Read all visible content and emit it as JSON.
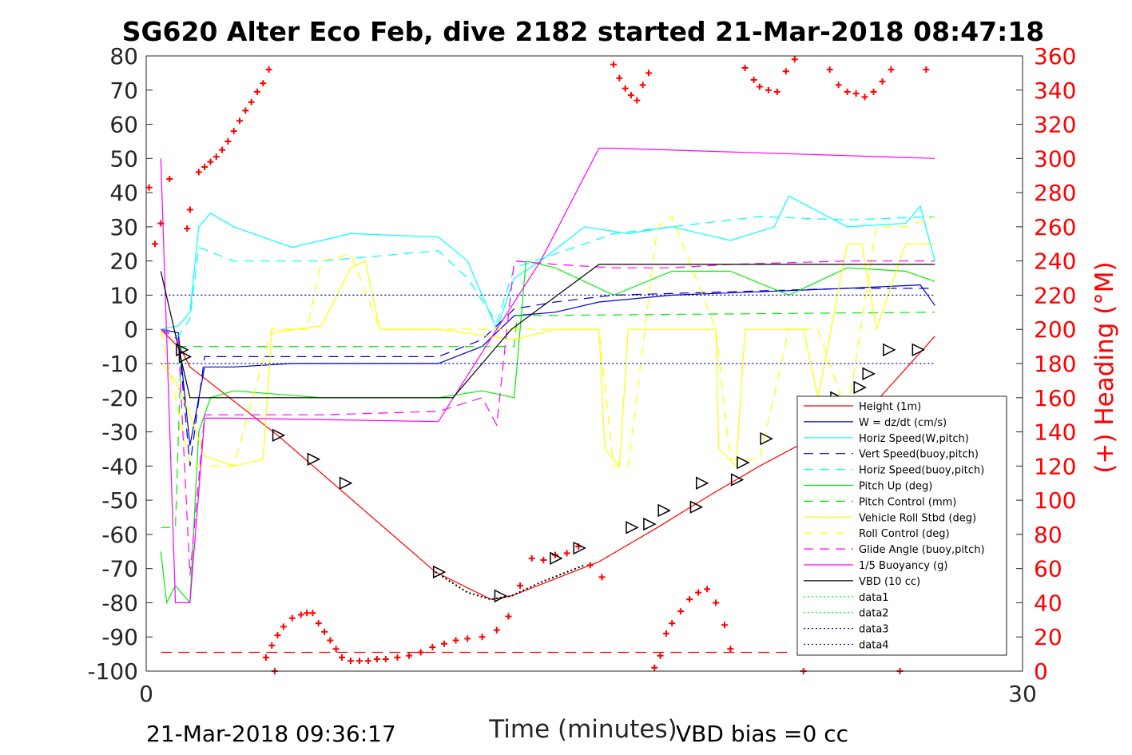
{
  "title": "SG620 Alter Eco Feb, dive 2182 started 21-Mar-2018 08:47:18",
  "footer_left": "21-Mar-2018 09:36:17",
  "footer_right": "VBD bias =0 cc",
  "chart_data": {
    "type": "line",
    "xlabel": "Time (minutes)",
    "ylabel": "",
    "y2label": "(+) Heading (°M)",
    "xlim": [
      0,
      30
    ],
    "ylim": [
      -100,
      80
    ],
    "y2lim": [
      0,
      360
    ],
    "xticks": [
      "0",
      "30"
    ],
    "yticks": [
      "80",
      "70",
      "60",
      "50",
      "40",
      "30",
      "20",
      "10",
      "0",
      "-10",
      "-20",
      "-30",
      "-40",
      "-50",
      "-60",
      "-70",
      "-80",
      "-90",
      "-100"
    ],
    "y2ticks": [
      "360",
      "340",
      "320",
      "300",
      "280",
      "260",
      "240",
      "220",
      "200",
      "180",
      "160",
      "140",
      "120",
      "100",
      "80",
      "60",
      "40",
      "20",
      "0"
    ],
    "legend_position": "bottom-right",
    "series": [
      {
        "name": "Height (1m)",
        "color": "#ff0000",
        "style": "solid",
        "x": [
          0.5,
          1.2,
          1.5,
          4.5,
          9.9,
          11.8,
          12.5,
          15.5,
          17.5,
          19.4,
          21.0,
          23.2,
          25.0,
          27.0
        ],
        "y": [
          0,
          -6,
          -11,
          -31,
          -71,
          -79,
          -78,
          -68,
          -58,
          -48,
          -40,
          -30,
          -21,
          -2
        ]
      },
      {
        "name": "W = dz/dt (cm/s)",
        "color": "#0000cc",
        "style": "solid",
        "x": [
          0.5,
          1.1,
          1.5,
          2.0,
          3.0,
          5.0,
          8.0,
          10.0,
          11.5,
          12.6,
          14.0,
          15.5,
          18.0,
          21.0,
          24.0,
          26.5,
          27.0
        ],
        "y": [
          0,
          -1,
          -34,
          -11,
          -11,
          -10,
          -10,
          -10,
          -5,
          4,
          5,
          8,
          10,
          11,
          12,
          13,
          7
        ]
      },
      {
        "name": "Horiz Speed(W,pitch)",
        "color": "#00ffff",
        "style": "solid",
        "x": [
          0.5,
          1.1,
          1.5,
          1.8,
          2.2,
          3.0,
          5.0,
          7.0,
          10.0,
          11.0,
          12.0,
          12.6,
          13.5,
          15.0,
          16.5,
          18.0,
          20.0,
          21.5,
          22.0,
          24.0,
          26.0,
          26.5,
          27.0
        ],
        "y": [
          0,
          1,
          5,
          30,
          34,
          30,
          24,
          28,
          27,
          20,
          0,
          15,
          20,
          30,
          28,
          30,
          26,
          30,
          39,
          30,
          31,
          36,
          20
        ]
      },
      {
        "name": "Vert Speed(buoy,pitch)",
        "color": "#0000cc",
        "style": "dash",
        "x": [
          0.5,
          1.1,
          1.5,
          2.0,
          3.0,
          8.0,
          10.0,
          11.5,
          12.6,
          14.0,
          16.0,
          20.0,
          24.0,
          27.0
        ],
        "y": [
          0,
          -2,
          -40,
          -8,
          -8,
          -8,
          -8,
          -3,
          6,
          8,
          10,
          11,
          12,
          12
        ]
      },
      {
        "name": "Horiz Speed(buoy,pitch)",
        "color": "#00ffff",
        "style": "dash",
        "x": [
          0.5,
          1.1,
          1.5,
          1.8,
          3.0,
          6.0,
          10.0,
          11.0,
          12.0,
          12.6,
          14.0,
          16.0,
          18.0,
          21.0,
          24.0,
          27.0
        ],
        "y": [
          0,
          -2,
          3,
          24,
          20,
          20,
          23,
          15,
          2,
          18,
          22,
          28,
          30,
          33,
          32,
          33
        ]
      },
      {
        "name": "Pitch Up (deg)",
        "color": "#00ee00",
        "style": "solid",
        "x": [
          0.5,
          0.7,
          1.0,
          1.5,
          1.8,
          2.2,
          3.0,
          6.0,
          10.0,
          11.5,
          12.6,
          13.0,
          14.0,
          16.0,
          18.0,
          20.0,
          22.0,
          24.0,
          26.0,
          27.0
        ],
        "y": [
          -65,
          -80,
          -75,
          -80,
          -30,
          -20,
          -18,
          -20,
          -20,
          -18,
          -20,
          20,
          18,
          10,
          17,
          17,
          10,
          18,
          17,
          14
        ]
      },
      {
        "name": "Pitch Control (mm)",
        "color": "#00ee00",
        "style": "dash",
        "x": [
          0.5,
          1.0,
          1.2,
          1.5,
          12.6,
          12.7,
          27.0
        ],
        "y": [
          -58,
          -58,
          -5,
          -5,
          -5,
          4,
          5
        ]
      },
      {
        "name": "Vehicle Roll Stbd (deg)",
        "color": "#ffff00",
        "style": "solid",
        "x": [
          0.5,
          1.0,
          1.5,
          2.0,
          3.0,
          4.0,
          4.3,
          6.0,
          7.0,
          7.5,
          8.0,
          10.0,
          12.6,
          14.0,
          15.5,
          15.7,
          16.2,
          16.5,
          18.0,
          19.5,
          19.6,
          20.2,
          20.5,
          21.5,
          22.5,
          23.0,
          24.0,
          24.5,
          25.0,
          26.0,
          27.0
        ],
        "y": [
          -10,
          -15,
          -25,
          -37,
          -40,
          -38,
          -1,
          1,
          18,
          20,
          0,
          0,
          -3,
          0,
          0,
          -35,
          -40,
          0,
          0,
          0,
          -35,
          -40,
          0,
          0,
          0,
          -20,
          25,
          25,
          0,
          25,
          25
        ]
      },
      {
        "name": "Roll Control (deg)",
        "color": "#ffff00",
        "style": "dash",
        "x": [
          0.5,
          1.0,
          1.5,
          3.0,
          4.3,
          5.5,
          6.0,
          7.0,
          8.0,
          10.0,
          12.6,
          14.0,
          15.5,
          16.0,
          16.5,
          17.5,
          18.0,
          19.5,
          20.0,
          21.0,
          22.0,
          23.0,
          24.0,
          25.0,
          26.0,
          27.0
        ],
        "y": [
          0,
          -20,
          -40,
          -40,
          0,
          0,
          20,
          22,
          0,
          0,
          0,
          0,
          0,
          -40,
          -40,
          30,
          33,
          0,
          -38,
          -38,
          0,
          0,
          -25,
          30,
          30,
          33
        ]
      },
      {
        "name": "Glide Angle (buoy,pitch)",
        "color": "#ff00ff",
        "style": "dash",
        "x": [
          0.5,
          1.1,
          1.5,
          2.0,
          3.0,
          6.0,
          10.0,
          11.5,
          12.0,
          12.6,
          14.0,
          16.0,
          18.0,
          20.0,
          24.0,
          27.0
        ],
        "y": [
          0,
          -3,
          -72,
          -25,
          -25,
          -25,
          -24,
          -20,
          -28,
          20,
          19,
          18,
          18,
          19,
          20,
          20
        ]
      },
      {
        "name": "1/5 Buoyancy (g)",
        "color": "#ff00ff",
        "style": "solid",
        "x": [
          0.5,
          1.0,
          1.5,
          2.0,
          3.0,
          10.0,
          12.0,
          13.5,
          15.5,
          16.0,
          27.0
        ],
        "y": [
          50,
          -80,
          -80,
          -26,
          -26,
          -27,
          0,
          20,
          53,
          53,
          50
        ]
      },
      {
        "name": "VBD (10 cc)",
        "color": "#000000",
        "style": "solid",
        "x": [
          0.5,
          1.5,
          10.5,
          12.5,
          15.5,
          27.0
        ],
        "y": [
          17,
          -20,
          -20,
          0,
          19,
          19
        ]
      },
      {
        "name": "data1",
        "color": "#00ee00",
        "style": "dot",
        "x": [],
        "y": []
      },
      {
        "name": "data2",
        "color": "#00ee00",
        "style": "dot",
        "x": [],
        "y": []
      },
      {
        "name": "data3",
        "color": "#0000cc",
        "style": "dot",
        "x": [
          0.5,
          27.0
        ],
        "y": [
          10,
          10
        ]
      },
      {
        "name": "data4",
        "color": "#0000cc",
        "style": "dot",
        "x": [
          0.5,
          27.0
        ],
        "y": [
          -10,
          -10
        ]
      }
    ],
    "dive_end_markers": {
      "x": [
        1.2,
        1.3,
        4.5,
        5.7,
        6.8,
        10.0,
        12.1,
        14.0,
        14.8,
        16.6,
        17.2,
        17.7,
        18.8,
        19.0,
        20.2,
        20.4,
        21.2,
        22.6,
        22.9,
        23.6,
        24.4,
        24.7,
        25.4,
        26.4
      ],
      "y": [
        -6,
        -8,
        -31,
        -38,
        -45,
        -71,
        -78,
        -67,
        -64,
        -58,
        -57,
        -53,
        -52,
        -45,
        -44,
        -39,
        -32,
        -30,
        -26,
        -20,
        -17,
        -13,
        -6,
        -6
      ]
    },
    "heading_series": {
      "name": "(+) Heading (°M)",
      "color": "#ff0000",
      "axis": "right",
      "x": [
        0.1,
        0.3,
        0.5,
        0.8,
        1.4,
        1.5,
        1.8,
        2.0,
        2.2,
        2.4,
        2.6,
        2.8,
        3.0,
        3.2,
        3.4,
        3.6,
        3.8,
        4.0,
        4.2,
        4.4,
        4.1,
        4.3,
        4.5,
        4.7,
        5.0,
        5.3,
        5.5,
        5.7,
        5.9,
        6.1,
        6.3,
        6.5,
        6.7,
        7.0,
        7.3,
        7.6,
        7.9,
        8.2,
        8.6,
        9.0,
        9.4,
        9.8,
        10.2,
        10.6,
        11.0,
        11.5,
        12.0,
        12.4,
        12.8,
        13.2,
        13.6,
        14.0,
        14.4,
        14.8,
        15.2,
        15.6,
        16.0,
        16.2,
        16.4,
        16.6,
        16.8,
        17.0,
        17.2,
        17.4,
        17.6,
        17.8,
        18.0,
        18.3,
        18.6,
        18.9,
        19.2,
        19.5,
        19.8,
        20.0,
        20.5,
        20.8,
        21.0,
        21.3,
        21.6,
        21.9,
        22.2,
        22.5,
        22.8,
        23.1,
        23.4,
        23.7,
        24.0,
        24.3,
        24.6,
        24.9,
        25.2,
        25.5,
        25.8,
        26.1,
        26.4,
        26.7
      ],
      "y": [
        283,
        250,
        262,
        288,
        259,
        270,
        292,
        295,
        298,
        301,
        305,
        310,
        316,
        322,
        328,
        333,
        339,
        344,
        352,
        0,
        8,
        15,
        21,
        26,
        31,
        33,
        34,
        34,
        28,
        23,
        18,
        13,
        8,
        6,
        6,
        6,
        7,
        7,
        8,
        9,
        11,
        14,
        16,
        18,
        19,
        20,
        24,
        32,
        50,
        66,
        65,
        68,
        69,
        73,
        62,
        55,
        355,
        347,
        341,
        337,
        334,
        343,
        350,
        2,
        9,
        22,
        28,
        35,
        42,
        46,
        48,
        40,
        27,
        13,
        353,
        346,
        342,
        340,
        339,
        351,
        358,
        0,
        28,
        34,
        352,
        343,
        339,
        338,
        336,
        339,
        345,
        352,
        0,
        27,
        33,
        352
      ]
    },
    "reference_line": {
      "color": "#ff0000",
      "style": "dash",
      "axis": "right",
      "value": 11
    }
  }
}
